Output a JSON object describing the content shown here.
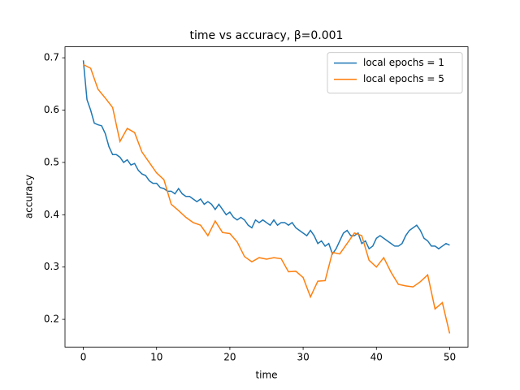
{
  "chart_data": {
    "type": "line",
    "title": "time vs accuracy, β=0.001",
    "x_label": "time",
    "y_label": "accuracy",
    "xlim": [
      -2.5,
      52.5
    ],
    "xticks": [
      0,
      10,
      20,
      30,
      40,
      50
    ],
    "ylim": [
      0.147,
      0.721
    ],
    "yticks": [
      0.2,
      0.3,
      0.4,
      0.5,
      0.6,
      0.7
    ],
    "grid": false,
    "legend": "upper right",
    "series": [
      {
        "name": "local epochs = 1",
        "color": "#1f77b4",
        "x": [
          0,
          0.5,
          1,
          1.5,
          2,
          2.5,
          3,
          3.5,
          4,
          4.5,
          5,
          5.5,
          6,
          6.5,
          7,
          7.5,
          8,
          8.5,
          9,
          9.5,
          10,
          10.5,
          11,
          11.5,
          12,
          12.5,
          13,
          13.5,
          14,
          14.5,
          15,
          15.5,
          16,
          16.5,
          17,
          17.5,
          18,
          18.5,
          19,
          19.5,
          20,
          20.5,
          21,
          21.5,
          22,
          22.5,
          23,
          23.5,
          24,
          24.5,
          25,
          25.5,
          26,
          26.5,
          27,
          27.5,
          28,
          28.5,
          29,
          29.5,
          30,
          30.5,
          31,
          31.5,
          32,
          32.5,
          33,
          33.5,
          34,
          34.5,
          35,
          35.5,
          36,
          36.5,
          37,
          37.5,
          38,
          38.5,
          39,
          39.5,
          40,
          40.5,
          41,
          41.5,
          42,
          42.5,
          43,
          43.5,
          44,
          44.5,
          45,
          45.5,
          46,
          46.5,
          47,
          47.5,
          48,
          48.5,
          49,
          49.5,
          50
        ],
        "values": [
          0.695,
          0.62,
          0.6,
          0.575,
          0.572,
          0.57,
          0.555,
          0.53,
          0.515,
          0.515,
          0.51,
          0.5,
          0.505,
          0.495,
          0.498,
          0.485,
          0.478,
          0.475,
          0.465,
          0.46,
          0.46,
          0.452,
          0.45,
          0.445,
          0.445,
          0.44,
          0.45,
          0.44,
          0.435,
          0.435,
          0.43,
          0.425,
          0.43,
          0.42,
          0.425,
          0.42,
          0.41,
          0.42,
          0.41,
          0.4,
          0.405,
          0.395,
          0.39,
          0.395,
          0.39,
          0.38,
          0.375,
          0.39,
          0.385,
          0.39,
          0.385,
          0.38,
          0.39,
          0.38,
          0.385,
          0.385,
          0.38,
          0.385,
          0.375,
          0.37,
          0.365,
          0.36,
          0.37,
          0.36,
          0.345,
          0.35,
          0.34,
          0.345,
          0.325,
          0.335,
          0.35,
          0.365,
          0.37,
          0.36,
          0.36,
          0.365,
          0.345,
          0.35,
          0.335,
          0.34,
          0.355,
          0.36,
          0.355,
          0.35,
          0.345,
          0.34,
          0.34,
          0.345,
          0.36,
          0.37,
          0.375,
          0.38,
          0.37,
          0.355,
          0.35,
          0.34,
          0.34,
          0.335,
          0.34,
          0.345,
          0.342
        ]
      },
      {
        "name": "local epochs = 5",
        "color": "#ff7f0e",
        "x": [
          0,
          1,
          2,
          3,
          4,
          5,
          6,
          7,
          8,
          9,
          10,
          11,
          12,
          13,
          14,
          15,
          16,
          17,
          18,
          19,
          20,
          21,
          22,
          23,
          24,
          25,
          26,
          27,
          28,
          29,
          30,
          31,
          32,
          33,
          34,
          35,
          36,
          37,
          38,
          39,
          40,
          41,
          42,
          43,
          44,
          45,
          46,
          47,
          48,
          49,
          50
        ],
        "values": [
          0.687,
          0.68,
          0.64,
          0.623,
          0.605,
          0.54,
          0.565,
          0.557,
          0.52,
          0.5,
          0.48,
          0.467,
          0.42,
          0.408,
          0.395,
          0.385,
          0.38,
          0.36,
          0.388,
          0.366,
          0.364,
          0.348,
          0.32,
          0.31,
          0.318,
          0.315,
          0.318,
          0.316,
          0.291,
          0.292,
          0.28,
          0.243,
          0.273,
          0.274,
          0.328,
          0.325,
          0.345,
          0.365,
          0.36,
          0.313,
          0.3,
          0.318,
          0.29,
          0.267,
          0.264,
          0.262,
          0.272,
          0.285,
          0.22,
          0.232,
          0.173
        ]
      }
    ]
  }
}
